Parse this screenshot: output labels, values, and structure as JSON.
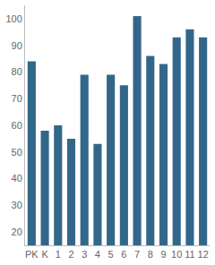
{
  "chart_data": {
    "type": "bar",
    "categories": [
      "PK",
      "K",
      "1",
      "2",
      "3",
      "4",
      "5",
      "6",
      "7",
      "8",
      "9",
      "10",
      "11",
      "12"
    ],
    "values": [
      84,
      58,
      60,
      55,
      79,
      53,
      79,
      75,
      101,
      86,
      83,
      93,
      96,
      93
    ],
    "color": "#336789",
    "ylim": [
      15,
      105
    ],
    "yticks": [
      20,
      30,
      40,
      50,
      60,
      70,
      80,
      90,
      100
    ],
    "grid": false
  }
}
